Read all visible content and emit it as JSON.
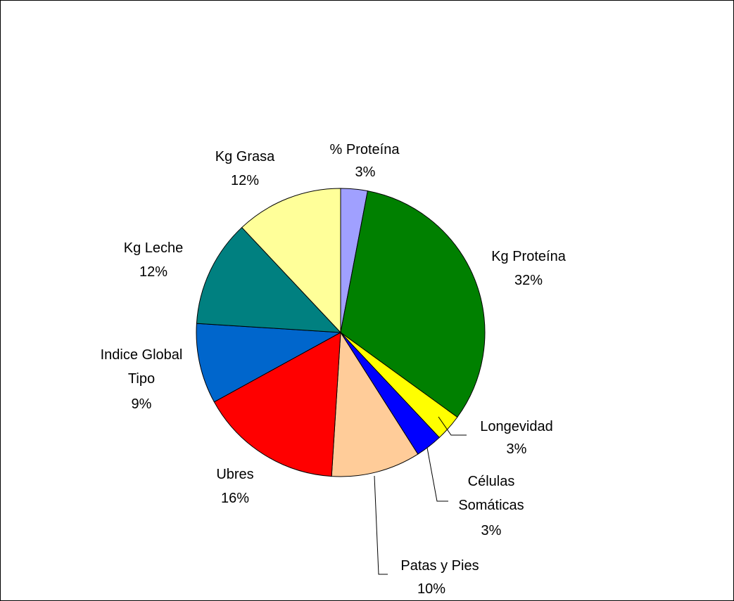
{
  "chart_data": {
    "type": "pie",
    "title": "",
    "slices": [
      {
        "name": "% Proteína",
        "value": 3,
        "label": "3%",
        "color": "#a0a0ff"
      },
      {
        "name": "Kg Proteína",
        "value": 32,
        "label": "32%",
        "color": "#008000"
      },
      {
        "name": "Longevidad",
        "value": 3,
        "label": "3%",
        "color": "#ffff00"
      },
      {
        "name": "Células Somáticas",
        "value": 3,
        "label": "3%",
        "color": "#0000ff"
      },
      {
        "name": "Patas y Pies",
        "value": 10,
        "label": "10%",
        "color": "#ffcc99"
      },
      {
        "name": "Ubres",
        "value": 16,
        "label": "16%",
        "color": "#ff0000"
      },
      {
        "name": "Indice Global Tipo",
        "value": 9,
        "label": "9%",
        "color": "#0066cc"
      },
      {
        "name": "Kg Leche",
        "value": 12,
        "label": "12%",
        "color": "#008080"
      },
      {
        "name": "Kg Grasa",
        "value": 12,
        "label": "12%",
        "color": "#ffff99"
      }
    ],
    "legend": "none",
    "label_position": "outside"
  }
}
